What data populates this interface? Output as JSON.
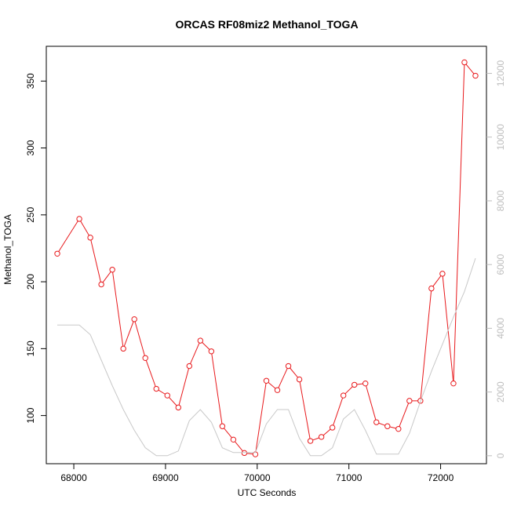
{
  "chart_data": {
    "type": "line",
    "title": "ORCAS RF08miz2 Methanol_TOGA",
    "xlabel": "UTC Seconds",
    "ylabel": "Methanol_TOGA",
    "xlim": [
      67700,
      72500
    ],
    "ylim": [
      64,
      376
    ],
    "y2lim": [
      -250,
      12850
    ],
    "x_ticks": [
      68000,
      69000,
      70000,
      71000,
      72000
    ],
    "y_ticks": [
      100,
      150,
      200,
      250,
      300,
      350
    ],
    "y2_ticks": [
      0,
      2000,
      4000,
      6000,
      8000,
      10000,
      12000
    ],
    "grid": false,
    "colors": {
      "primary": "#e8191c",
      "secondary": "#c8c8c8",
      "axis": "#000000",
      "secondary_axis": "#bebebe"
    },
    "series": [
      {
        "axis": "left",
        "style": "line-points",
        "x": [
          67820,
          68060,
          68180,
          68300,
          68420,
          68540,
          68660,
          68780,
          68900,
          69020,
          69140,
          69260,
          69380,
          69500,
          69620,
          69740,
          69860,
          69980,
          70100,
          70220,
          70340,
          70460,
          70580,
          70700,
          70820,
          70940,
          71060,
          71180,
          71300,
          71420,
          71540,
          71660,
          71780,
          71900,
          72020,
          72140,
          72260,
          72380
        ],
        "values": [
          221,
          247,
          233,
          198,
          209,
          150,
          172,
          143,
          120,
          115,
          106,
          137,
          156,
          148,
          92,
          82,
          72,
          71,
          126,
          119,
          137,
          127,
          81,
          84,
          91,
          115,
          123,
          124,
          95,
          92,
          90,
          111,
          111,
          195,
          206,
          124,
          364,
          354
        ]
      },
      {
        "axis": "right",
        "style": "line",
        "x": [
          67820,
          67950,
          68060,
          68180,
          68300,
          68420,
          68540,
          68660,
          68780,
          68900,
          69020,
          69140,
          69260,
          69380,
          69500,
          69620,
          69740,
          69860,
          69980,
          70100,
          70220,
          70340,
          70460,
          70580,
          70700,
          70820,
          70940,
          71060,
          71180,
          71300,
          71420,
          71540,
          71660,
          71780,
          71900,
          72020,
          72140,
          72260,
          72380
        ],
        "values": [
          4100,
          4100,
          4100,
          3800,
          3000,
          2200,
          1450,
          800,
          250,
          0,
          0,
          150,
          1100,
          1450,
          1050,
          250,
          100,
          100,
          100,
          1000,
          1450,
          1450,
          550,
          0,
          0,
          250,
          1150,
          1450,
          800,
          50,
          50,
          50,
          700,
          1700,
          2650,
          3500,
          4350,
          5150,
          6200
        ]
      }
    ]
  }
}
